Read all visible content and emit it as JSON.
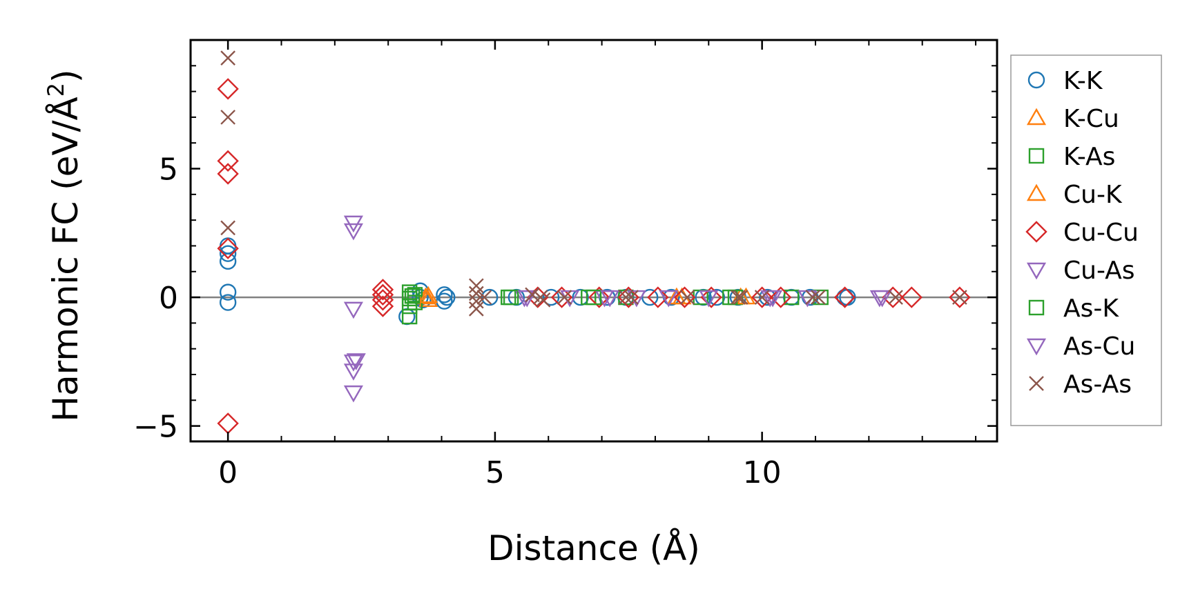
{
  "chart_data": {
    "type": "scatter",
    "title": "",
    "xlabel": "Distance (Å)",
    "ylabel": "Harmonic FC (eV/Å",
    "ylabel_sup": "2",
    "ylabel_close": ")",
    "xlim": [
      -0.7,
      14.4
    ],
    "ylim": [
      -5.6,
      10.0
    ],
    "xticks": [
      0,
      5,
      10
    ],
    "xtick_labels": [
      "0",
      "5",
      "10"
    ],
    "yticks": [
      -5,
      0,
      5
    ],
    "ytick_labels": [
      "−5",
      "0",
      "5"
    ],
    "xminor_step": 1,
    "yminor_step": 1,
    "reference_line_y": 0,
    "legend_position": "outside-right",
    "series": [
      {
        "name": "K-K",
        "marker": "circle",
        "color": "#1f77b4",
        "points": [
          [
            0,
            2.0
          ],
          [
            0,
            1.7
          ],
          [
            0,
            1.4
          ],
          [
            0,
            0.2
          ],
          [
            0,
            -0.2
          ],
          [
            3.35,
            -0.75
          ],
          [
            3.6,
            0.25
          ],
          [
            3.6,
            0.0
          ],
          [
            3.65,
            -0.1
          ],
          [
            4.05,
            0.1
          ],
          [
            4.05,
            -0.15
          ],
          [
            4.1,
            0.0
          ],
          [
            4.9,
            0.0
          ],
          [
            5.4,
            0.0
          ],
          [
            6.05,
            0.0
          ],
          [
            6.6,
            0.0
          ],
          [
            7.1,
            0.0
          ],
          [
            7.45,
            0.0
          ],
          [
            7.9,
            0.0
          ],
          [
            8.3,
            0.0
          ],
          [
            8.9,
            0.0
          ],
          [
            9.15,
            0.0
          ],
          [
            9.55,
            0.0
          ],
          [
            10.1,
            0.0
          ],
          [
            10.55,
            0.0
          ],
          [
            10.9,
            0.0
          ],
          [
            11.55,
            0.0
          ],
          [
            11.6,
            0.0
          ]
        ]
      },
      {
        "name": "K-Cu",
        "marker": "triangle-up",
        "color": "#ff7f0e",
        "points": [
          [
            3.7,
            0.0
          ],
          [
            3.75,
            -0.1
          ],
          [
            8.4,
            0.0
          ],
          [
            9.6,
            0.0
          ]
        ]
      },
      {
        "name": "K-As",
        "marker": "square",
        "color": "#2ca02c",
        "points": [
          [
            3.4,
            0.2
          ],
          [
            3.4,
            -0.05
          ],
          [
            3.4,
            -0.35
          ],
          [
            3.4,
            -0.75
          ],
          [
            3.5,
            0.1
          ],
          [
            3.5,
            -0.2
          ],
          [
            5.25,
            0.0
          ],
          [
            6.75,
            0.0
          ],
          [
            7.45,
            0.0
          ],
          [
            8.85,
            0.0
          ],
          [
            9.5,
            0.0
          ],
          [
            10.55,
            0.0
          ],
          [
            11.1,
            0.0
          ]
        ]
      },
      {
        "name": "Cu-K",
        "marker": "triangle-up",
        "color": "#ff7f0e",
        "points": [
          [
            3.75,
            0.05
          ],
          [
            8.5,
            0.0
          ],
          [
            9.7,
            0.0
          ]
        ]
      },
      {
        "name": "Cu-Cu",
        "marker": "diamond",
        "color": "#d62728",
        "points": [
          [
            0,
            8.1
          ],
          [
            0,
            5.3
          ],
          [
            0,
            4.8
          ],
          [
            0,
            1.9
          ],
          [
            0,
            -4.9
          ],
          [
            2.9,
            0.3
          ],
          [
            2.9,
            0.1
          ],
          [
            2.9,
            -0.1
          ],
          [
            2.9,
            -0.35
          ],
          [
            5.8,
            0.0
          ],
          [
            6.25,
            0.0
          ],
          [
            6.95,
            0.0
          ],
          [
            7.5,
            0.0
          ],
          [
            8.05,
            0.0
          ],
          [
            8.55,
            0.0
          ],
          [
            9.05,
            0.0
          ],
          [
            10.0,
            0.0
          ],
          [
            10.35,
            0.0
          ],
          [
            11.55,
            0.0
          ],
          [
            12.45,
            0.0
          ],
          [
            12.8,
            0.0
          ],
          [
            13.7,
            0.0
          ]
        ]
      },
      {
        "name": "Cu-As",
        "marker": "triangle-down",
        "color": "#9467bd",
        "points": [
          [
            2.35,
            2.9
          ],
          [
            2.35,
            2.6
          ],
          [
            2.35,
            -0.45
          ],
          [
            2.35,
            -2.5
          ],
          [
            2.35,
            -2.85
          ],
          [
            2.35,
            -3.7
          ],
          [
            5.55,
            0.0
          ],
          [
            6.4,
            0.0
          ],
          [
            7.05,
            0.0
          ],
          [
            7.65,
            0.0
          ],
          [
            8.25,
            0.0
          ],
          [
            9.0,
            0.0
          ],
          [
            10.15,
            0.0
          ],
          [
            10.85,
            0.0
          ],
          [
            12.2,
            0.0
          ]
        ]
      },
      {
        "name": "As-K",
        "marker": "square",
        "color": "#2ca02c",
        "points": [
          [
            3.45,
            0.05
          ],
          [
            5.3,
            0.0
          ],
          [
            6.85,
            0.0
          ],
          [
            9.4,
            0.0
          ]
        ]
      },
      {
        "name": "As-Cu",
        "marker": "triangle-down",
        "color": "#9467bd",
        "points": [
          [
            2.4,
            -2.45
          ],
          [
            5.6,
            0.0
          ],
          [
            7.15,
            0.0
          ],
          [
            10.2,
            0.0
          ],
          [
            12.25,
            0.0
          ]
        ]
      },
      {
        "name": "As-As",
        "marker": "x",
        "color": "#8c564b",
        "points": [
          [
            0,
            9.3
          ],
          [
            0,
            7.0
          ],
          [
            0,
            2.7
          ],
          [
            4.65,
            0.45
          ],
          [
            4.65,
            0.15
          ],
          [
            4.65,
            -0.15
          ],
          [
            4.65,
            -0.45
          ],
          [
            4.8,
            0.0
          ],
          [
            5.7,
            0.1
          ],
          [
            5.85,
            0.0
          ],
          [
            5.9,
            -0.1
          ],
          [
            6.3,
            0.0
          ],
          [
            7.45,
            0.0
          ],
          [
            7.55,
            0.0
          ],
          [
            8.6,
            0.0
          ],
          [
            9.55,
            0.0
          ],
          [
            9.6,
            0.0
          ],
          [
            10.0,
            0.0
          ],
          [
            10.95,
            0.0
          ],
          [
            11.05,
            0.0
          ],
          [
            12.5,
            0.0
          ],
          [
            13.7,
            0.0
          ]
        ]
      }
    ]
  }
}
